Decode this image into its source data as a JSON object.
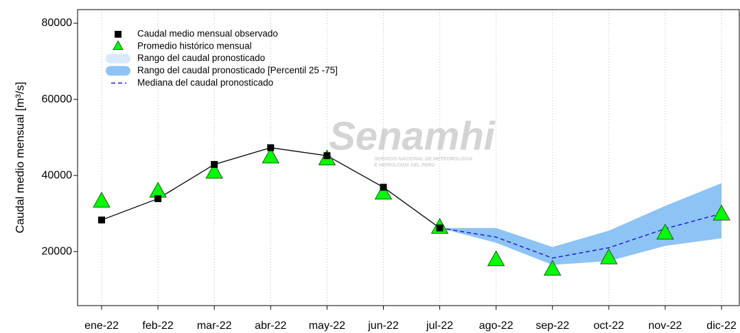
{
  "chart_data": {
    "type": "line",
    "y_label": "Caudal medio mensual  [m³/s]",
    "categories": [
      "ene-22",
      "feb-22",
      "mar-22",
      "abr-22",
      "may-22",
      "jun-22",
      "jul-22",
      "ago-22",
      "sep-22",
      "oct-22",
      "nov-22",
      "dic-22"
    ],
    "ylim": [
      5800,
      83600
    ],
    "yticks": [
      20000,
      40000,
      60000,
      80000
    ],
    "grid": "x",
    "watermark": {
      "name": "Senamhi",
      "lines": [
        "SERVICIO NACIONAL DE METEOROLOGIA",
        "E HIDROLOGIA DEL PERU"
      ]
    },
    "series": [
      {
        "name": "Caudal medio mensual observado",
        "color": "#000000",
        "kind": "line-square",
        "values": [
          28300,
          33900,
          42900,
          47300,
          45200,
          36900,
          26200,
          null,
          null,
          null,
          null,
          null
        ]
      },
      {
        "name": "Promedio histórico mensual",
        "color": "#00ff00",
        "kind": "triangle",
        "values": [
          33400,
          36000,
          41000,
          45000,
          44500,
          35500,
          26500,
          18000,
          15500,
          18500,
          25000,
          30000
        ]
      },
      {
        "name": "Rango del caudal pronosticado",
        "color": "#d6eafc",
        "kind": "band-legend"
      },
      {
        "name": "Rango del caudal pronosticado [Percentil 25 -75]",
        "color": "#8ec3f5",
        "kind": "band",
        "upper": [
          null,
          null,
          null,
          null,
          null,
          null,
          26200,
          26200,
          21200,
          25500,
          32000,
          38000
        ],
        "lower": [
          null,
          null,
          null,
          null,
          null,
          null,
          26200,
          22300,
          16500,
          17500,
          21500,
          23500
        ]
      },
      {
        "name": "Mediana del caudal pronosticado",
        "color": "#1f1fd6",
        "kind": "dash",
        "values": [
          null,
          null,
          null,
          null,
          null,
          null,
          26200,
          23800,
          18300,
          21000,
          26000,
          30000
        ]
      }
    ]
  }
}
